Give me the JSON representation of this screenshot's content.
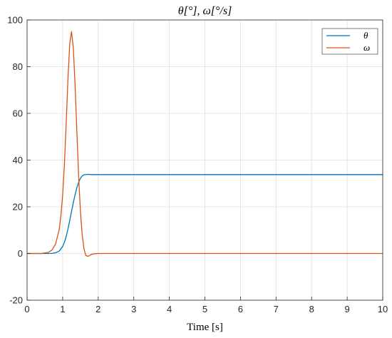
{
  "chart_data": {
    "type": "line",
    "title": "θ[°], ω[°/s]",
    "xlabel": "Time [s]",
    "ylabel": "",
    "xlim": [
      0,
      10
    ],
    "ylim": [
      -20,
      100
    ],
    "xticks": [
      0,
      1,
      2,
      3,
      4,
      5,
      6,
      7,
      8,
      9,
      10
    ],
    "yticks": [
      -20,
      0,
      20,
      40,
      60,
      80,
      100
    ],
    "grid": true,
    "legend_position": "top-right",
    "series": [
      {
        "name": "θ",
        "color": "#0072BD",
        "x": [
          0,
          0.5,
          0.7,
          0.8,
          0.9,
          1.0,
          1.05,
          1.1,
          1.15,
          1.2,
          1.25,
          1.3,
          1.35,
          1.4,
          1.45,
          1.5,
          1.55,
          1.6,
          1.7,
          1.8,
          2.0,
          3,
          4,
          5,
          6,
          7,
          8,
          9,
          10
        ],
        "y": [
          0,
          0,
          0.05,
          0.3,
          1.0,
          3.0,
          4.8,
          7.3,
          10.5,
          14.2,
          18.0,
          21.8,
          25.2,
          28.2,
          30.5,
          32.2,
          33.2,
          33.7,
          33.9,
          33.8,
          33.8,
          33.8,
          33.8,
          33.8,
          33.8,
          33.8,
          33.8,
          33.8,
          33.8
        ]
      },
      {
        "name": "ω",
        "color": "#D95319",
        "x": [
          0,
          0.4,
          0.6,
          0.7,
          0.8,
          0.9,
          0.95,
          1.0,
          1.05,
          1.1,
          1.15,
          1.2,
          1.25,
          1.3,
          1.35,
          1.4,
          1.45,
          1.5,
          1.55,
          1.6,
          1.65,
          1.7,
          1.75,
          1.8,
          1.9,
          2.0,
          2.2,
          3,
          4,
          5,
          6,
          7,
          8,
          9,
          10
        ],
        "y": [
          0,
          0,
          0.5,
          1.5,
          4.0,
          10.0,
          16.0,
          25.0,
          38.0,
          56.0,
          75.0,
          90.0,
          95.0,
          88.0,
          72.0,
          52.0,
          33.0,
          18.0,
          8.0,
          2.0,
          -0.8,
          -1.2,
          -1.0,
          -0.4,
          -0.1,
          0,
          0,
          0,
          0,
          0,
          0,
          0,
          0,
          0,
          0
        ]
      }
    ]
  }
}
